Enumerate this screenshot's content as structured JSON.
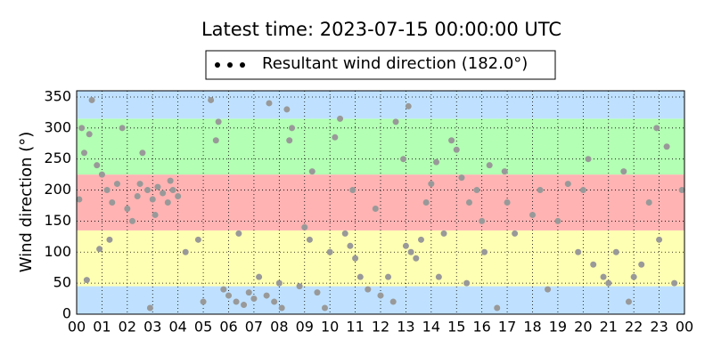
{
  "chart_data": {
    "type": "scatter",
    "title": "Latest time: 2023-07-15 00:00:00 UTC",
    "ylabel": "Wind direction (°)",
    "series": [
      {
        "name": "Resultant wind direction (182.0°)",
        "color": "#000000",
        "point_color": "#999999",
        "x": [
          0.1,
          0.2,
          0.3,
          0.5,
          0.6,
          0.8,
          1.0,
          1.2,
          1.4,
          1.6,
          1.8,
          0.4,
          0.9,
          1.3,
          2.0,
          2.2,
          2.4,
          2.6,
          2.8,
          3.0,
          3.2,
          3.4,
          3.6,
          3.8,
          4.0,
          2.5,
          3.1,
          3.7,
          4.3,
          4.8,
          2.9,
          5.0,
          5.3,
          5.5,
          5.8,
          6.0,
          6.3,
          6.6,
          6.8,
          7.0,
          7.2,
          7.5,
          7.8,
          8.0,
          8.3,
          8.5,
          8.1,
          8.8,
          5.6,
          6.4,
          7.6,
          8.4,
          9.0,
          9.2,
          9.5,
          9.8,
          10.0,
          10.2,
          10.4,
          10.6,
          10.8,
          11.0,
          11.2,
          9.3,
          10.9,
          11.5,
          11.8,
          12.0,
          12.3,
          12.6,
          12.9,
          13.0,
          13.2,
          13.4,
          13.6,
          13.8,
          14.0,
          14.2,
          14.5,
          14.8,
          13.1,
          12.5,
          14.3,
          15.0,
          15.2,
          15.5,
          15.8,
          16.0,
          16.3,
          16.6,
          16.9,
          15.4,
          16.1,
          17.0,
          17.3,
          18.0,
          18.3,
          18.6,
          19.0,
          19.4,
          19.8,
          20.0,
          20.4,
          20.8,
          21.0,
          21.3,
          21.6,
          22.0,
          22.3,
          22.6,
          23.0,
          23.3,
          23.6,
          23.9,
          20.2,
          22.9,
          21.8
        ],
        "values": [
          185,
          300,
          260,
          290,
          345,
          240,
          225,
          200,
          180,
          210,
          300,
          55,
          105,
          120,
          170,
          150,
          190,
          260,
          200,
          185,
          205,
          195,
          180,
          200,
          190,
          210,
          160,
          215,
          100,
          120,
          10,
          20,
          345,
          280,
          40,
          30,
          20,
          15,
          35,
          25,
          60,
          30,
          20,
          50,
          330,
          300,
          10,
          45,
          310,
          130,
          340,
          280,
          140,
          120,
          35,
          10,
          100,
          285,
          315,
          130,
          110,
          90,
          60,
          230,
          200,
          40,
          170,
          30,
          60,
          310,
          250,
          110,
          100,
          90,
          120,
          180,
          210,
          245,
          130,
          280,
          335,
          20,
          60,
          265,
          220,
          180,
          200,
          150,
          240,
          10,
          230,
          50,
          100,
          180,
          130,
          160,
          200,
          40,
          150,
          210,
          100,
          200,
          80,
          60,
          50,
          100,
          230,
          60,
          80,
          180,
          120,
          270,
          50,
          200,
          250,
          300,
          20
        ]
      }
    ],
    "bands": [
      {
        "from": 0,
        "to": 45,
        "color": "#bfe1ff"
      },
      {
        "from": 45,
        "to": 135,
        "color": "#ffffb3"
      },
      {
        "from": 135,
        "to": 225,
        "color": "#ffb3b3"
      },
      {
        "from": 225,
        "to": 315,
        "color": "#b3ffb3"
      },
      {
        "from": 315,
        "to": 360,
        "color": "#bfe1ff"
      }
    ],
    "xlim": [
      0,
      24
    ],
    "xticks": [
      {
        "value": 0,
        "label": "00"
      },
      {
        "value": 1,
        "label": "01"
      },
      {
        "value": 2,
        "label": "02"
      },
      {
        "value": 3,
        "label": "03"
      },
      {
        "value": 4,
        "label": "04"
      },
      {
        "value": 5,
        "label": "05"
      },
      {
        "value": 6,
        "label": "06"
      },
      {
        "value": 7,
        "label": "07"
      },
      {
        "value": 8,
        "label": "08"
      },
      {
        "value": 9,
        "label": "09"
      },
      {
        "value": 10,
        "label": "10"
      },
      {
        "value": 11,
        "label": "11"
      },
      {
        "value": 12,
        "label": "12"
      },
      {
        "value": 13,
        "label": "13"
      },
      {
        "value": 14,
        "label": "14"
      },
      {
        "value": 15,
        "label": "15"
      },
      {
        "value": 16,
        "label": "16"
      },
      {
        "value": 17,
        "label": "17"
      },
      {
        "value": 18,
        "label": "18"
      },
      {
        "value": 19,
        "label": "19"
      },
      {
        "value": 20,
        "label": "20"
      },
      {
        "value": 21,
        "label": "21"
      },
      {
        "value": 22,
        "label": "22"
      },
      {
        "value": 23,
        "label": "23"
      },
      {
        "value": 24,
        "label": "00"
      }
    ],
    "ylim": [
      0,
      360
    ],
    "yticks": [
      0,
      50,
      100,
      150,
      200,
      250,
      300,
      350
    ],
    "grid": true
  }
}
